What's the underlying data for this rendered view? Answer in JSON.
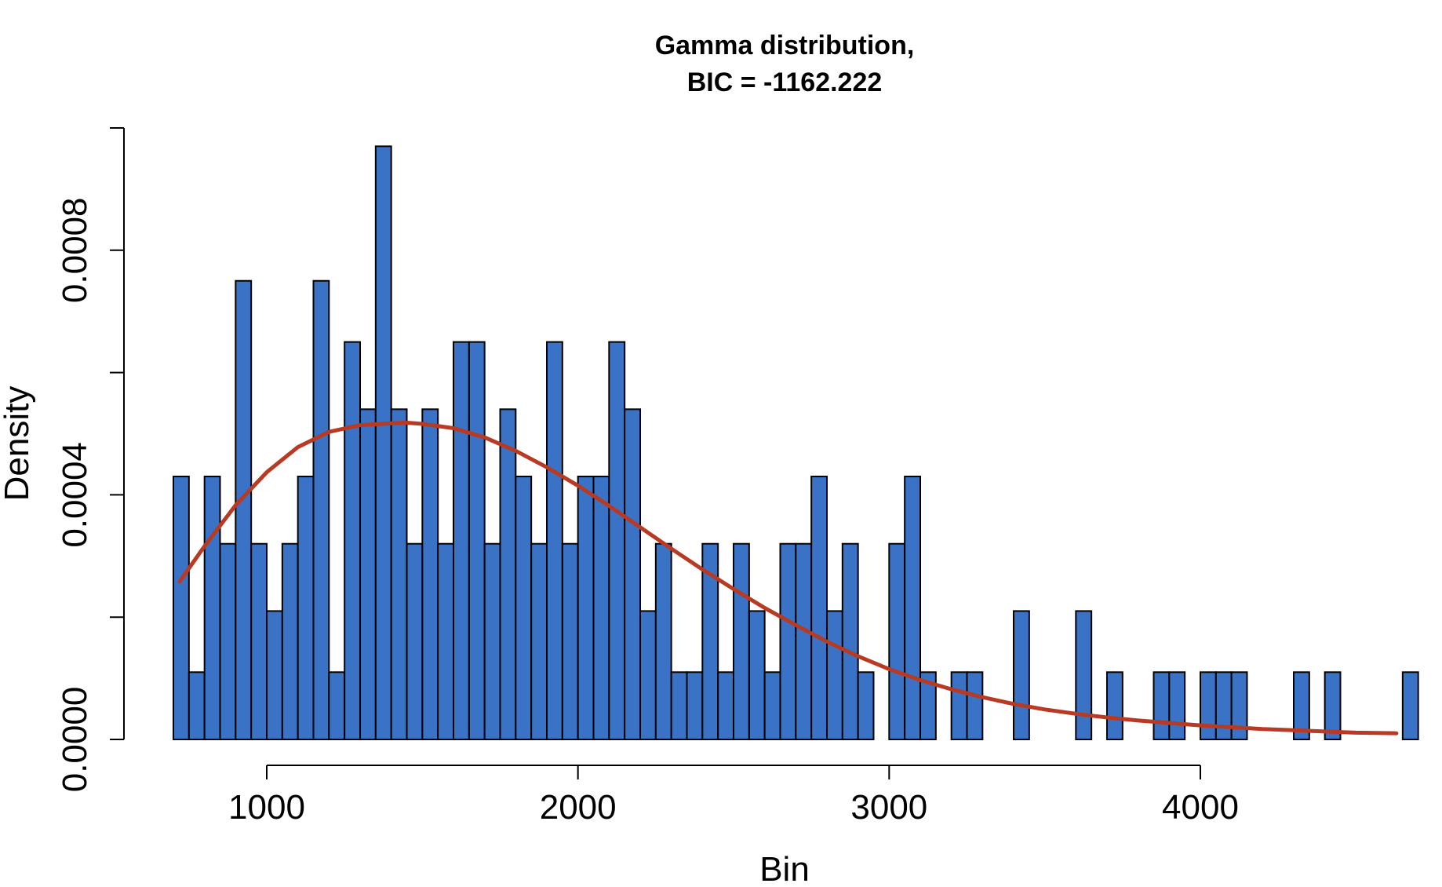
{
  "chart_data": {
    "type": "bar",
    "title": "Gamma distribution,",
    "subtitle": "BIC = -1162.222",
    "xlabel": "Bin",
    "ylabel": "Density",
    "x_ticks": [
      1000,
      2000,
      3000,
      4000
    ],
    "x_tick_labels": [
      "1000",
      "2000",
      "3000",
      "4000"
    ],
    "y_ticks": [
      0,
      0.0002,
      0.0004,
      0.0006,
      0.0008,
      0.001
    ],
    "y_tick_labels": [
      "0.0000",
      "",
      "0.0004",
      "",
      "0.0008",
      ""
    ],
    "xlim": [
      700,
      4650
    ],
    "ylim": [
      0,
      0.001
    ],
    "grid": false,
    "bin_start": 700,
    "bin_width": 50,
    "bar_color": "#3a72c6",
    "curve_color": "#b83a23",
    "values": [
      0.00043,
      0.00011,
      0.00043,
      0.00032,
      0.00075,
      0.00032,
      0.00021,
      0.00032,
      0.00043,
      0.00075,
      0.00011,
      0.00065,
      0.00054,
      0.00097,
      0.00054,
      0.00032,
      0.00054,
      0.00032,
      0.00065,
      0.00065,
      0.00032,
      0.00054,
      0.00043,
      0.00032,
      0.00065,
      0.00032,
      0.00043,
      0.00043,
      0.00065,
      0.00054,
      0.00021,
      0.00032,
      0.00011,
      0.00011,
      0.00032,
      0.00011,
      0.00032,
      0.00021,
      0.00011,
      0.00032,
      0.00032,
      0.00043,
      0.00021,
      0.00032,
      0.00011,
      0,
      0.00032,
      0.00043,
      0.00011,
      0,
      0.00011,
      0.00011,
      0,
      0,
      0.00021,
      0,
      0,
      0,
      0.00021,
      0,
      0.00011,
      0,
      0,
      0.00011,
      0.00011,
      0,
      0.00011,
      0.00011,
      0.00011,
      0,
      0,
      0,
      0.00011,
      0,
      0.00011,
      0,
      0,
      0,
      0,
      0.00011
    ],
    "series": [
      {
        "type": "line",
        "x": [
          720,
          800,
          900,
          1000,
          1100,
          1200,
          1300,
          1400,
          1450,
          1500,
          1600,
          1700,
          1800,
          1900,
          2000,
          2100,
          2200,
          2300,
          2400,
          2500,
          2600,
          2700,
          2800,
          2900,
          3000,
          3100,
          3200,
          3300,
          3400,
          3500,
          3600,
          3700,
          3800,
          3900,
          4000,
          4100,
          4200,
          4300,
          4400,
          4500,
          4630
        ],
        "y": [
          0.000258,
          0.000316,
          0.000383,
          0.000437,
          0.000478,
          0.000503,
          0.000514,
          0.000517,
          0.000518,
          0.000516,
          0.000509,
          0.000494,
          0.000472,
          0.000445,
          0.000415,
          0.000382,
          0.000347,
          0.000312,
          0.000278,
          0.000246,
          0.000215,
          0.000187,
          0.00016,
          0.000136,
          0.000115,
          9.7e-05,
          8.2e-05,
          6.9e-05,
          5.8e-05,
          4.9e-05,
          4.2e-05,
          3.6e-05,
          3.1e-05,
          2.7e-05,
          2.3e-05,
          2e-05,
          1.7e-05,
          1.5e-05,
          1.3e-05,
          1.1e-05,
          1e-05
        ]
      }
    ]
  }
}
